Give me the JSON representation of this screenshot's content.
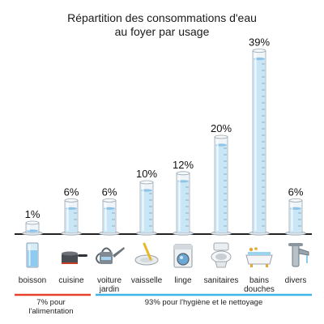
{
  "title_line1": "Répartition des consommations d'eau",
  "title_line2": "au foyer par usage",
  "chart_data": {
    "type": "bar",
    "unit": "%",
    "categories": [
      "boisson",
      "cuisine",
      "voiture\njardin",
      "vaisselle",
      "linge",
      "sanitaires",
      "bains\ndouches",
      "divers"
    ],
    "values": [
      1,
      6,
      6,
      10,
      12,
      20,
      39,
      6
    ],
    "value_labels": [
      "1%",
      "6%",
      "6%",
      "10%",
      "12%",
      "20%",
      "39%",
      "6%"
    ],
    "icons": [
      "glass-icon",
      "cooking-pot-icon",
      "watering-can-icon",
      "dish-plate-icon",
      "washing-machine-icon",
      "toilet-icon",
      "bathtub-icon",
      "faucet-icon"
    ],
    "groups": [
      {
        "label": "7% pour\nl'alimentation",
        "categories": [
          0,
          1
        ],
        "color": "#e8412c"
      },
      {
        "label": "93% pour l'hygiène et le nettoyage",
        "categories": [
          2,
          3,
          4,
          5,
          6,
          7
        ],
        "color": "#3fb5e6"
      }
    ],
    "colors": {
      "water": "#c9e6f7",
      "water_edge": "#8fc4e6",
      "glass": "#eef4f8",
      "glass_edge": "#9aa7b0"
    }
  }
}
